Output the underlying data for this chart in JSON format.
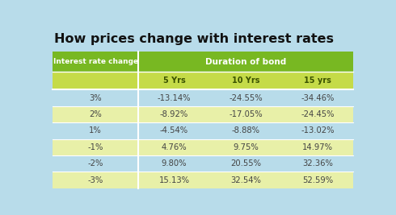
{
  "title": "How prices change with interest rates",
  "col_header_main": "Duration of bond",
  "col_header_left": "Interest rate change",
  "sub_headers": [
    "5 Yrs",
    "10 Yrs",
    "15 yrs"
  ],
  "row_labels": [
    "3%",
    "2%",
    "1%",
    "-1%",
    "-2%",
    "-3%"
  ],
  "table_data": [
    [
      "-13.14%",
      "-24.55%",
      "-34.46%"
    ],
    [
      "-8.92%",
      "-17.05%",
      "-24.45%"
    ],
    [
      "-4.54%",
      "-8.88%",
      "-13.02%"
    ],
    [
      "4.76%",
      "9.75%",
      "14.97%"
    ],
    [
      "9.80%",
      "20.55%",
      "32.36%"
    ],
    [
      "15.13%",
      "32.54%",
      "52.59%"
    ]
  ],
  "bg_color": "#b8dcea",
  "header_green_dark": "#78b822",
  "header_green_light": "#c5db48",
  "row_odd_color": "#b8dcea",
  "row_even_color": "#e8f0a8",
  "header_text_color": "#ffffff",
  "subheader_text_color": "#3a5200",
  "data_text_color": "#444444",
  "title_color": "#111111",
  "divider_color": "#ffffff"
}
